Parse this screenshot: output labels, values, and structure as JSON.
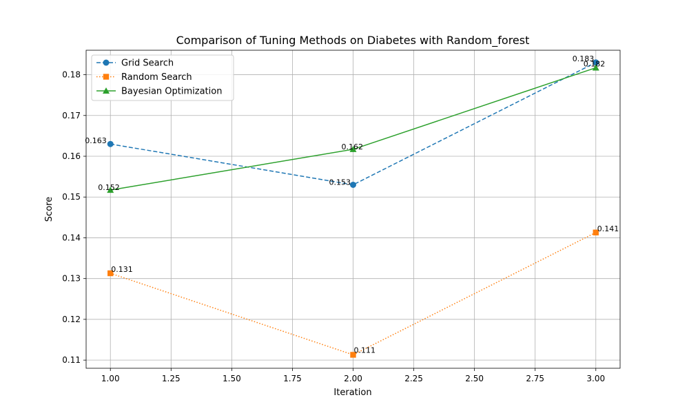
{
  "chart_data": {
    "type": "line",
    "title": "Comparison of Tuning Methods on Diabetes with Random_forest",
    "xlabel": "Iteration",
    "ylabel": "Score",
    "xlim": [
      0.9,
      3.1
    ],
    "ylim": [
      0.108,
      0.186
    ],
    "xticks": [
      1.0,
      1.25,
      1.5,
      1.75,
      2.0,
      2.25,
      2.5,
      2.75,
      3.0
    ],
    "xtick_labels": [
      "1.00",
      "1.25",
      "1.50",
      "1.75",
      "2.00",
      "2.25",
      "2.50",
      "2.75",
      "3.00"
    ],
    "yticks": [
      0.11,
      0.12,
      0.13,
      0.14,
      0.15,
      0.16,
      0.17,
      0.18
    ],
    "ytick_labels": [
      "0.11",
      "0.12",
      "0.13",
      "0.14",
      "0.15",
      "0.16",
      "0.17",
      "0.18"
    ],
    "grid": true,
    "legend_position": "top-left",
    "x": [
      1,
      2,
      3
    ],
    "series": [
      {
        "name": "Grid Search",
        "values": [
          0.163,
          0.153,
          0.183
        ],
        "labels": [
          "0.163",
          "0.153",
          "0.183"
        ],
        "color": "#1f77b4",
        "line_style": "dashed",
        "marker": "circle"
      },
      {
        "name": "Random Search",
        "values": [
          0.1313,
          0.1113,
          0.1413
        ],
        "labels": [
          "0.131",
          "0.111",
          "0.141"
        ],
        "color": "#ff7f0e",
        "line_style": "dotted",
        "marker": "square"
      },
      {
        "name": "Bayesian Optimization",
        "values": [
          0.1517,
          0.1617,
          0.1817
        ],
        "labels": [
          "0.152",
          "0.162",
          "0.182"
        ],
        "color": "#2ca02c",
        "line_style": "solid",
        "marker": "triangle"
      }
    ]
  }
}
